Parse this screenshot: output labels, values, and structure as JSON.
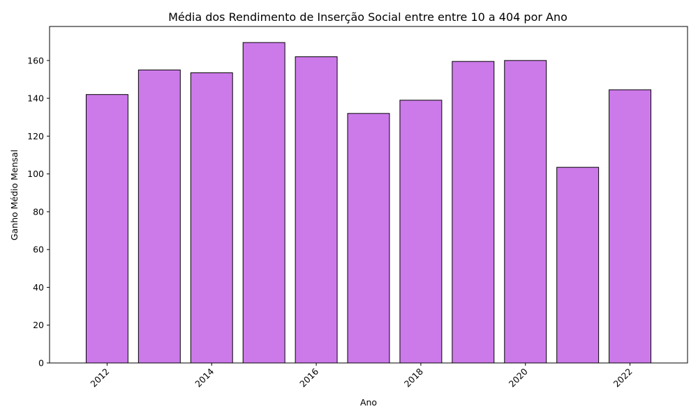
{
  "chart_data": {
    "type": "bar",
    "title": "Média dos Rendimento de Inserção Social entre entre 10 a 404 por Ano",
    "xlabel": "Ano",
    "ylabel": "Ganho Médio Mensal",
    "x": [
      2012,
      2013,
      2014,
      2015,
      2016,
      2017,
      2018,
      2019,
      2020,
      2021,
      2022
    ],
    "values": [
      142,
      155,
      153.5,
      169.5,
      162,
      132,
      139,
      159.5,
      160,
      103.5,
      144.5
    ],
    "xticks": [
      2012,
      2014,
      2016,
      2018,
      2020,
      2022
    ],
    "xlim": [
      2010.9,
      2023.1
    ],
    "yticks": [
      0,
      20,
      40,
      60,
      80,
      100,
      120,
      140,
      160
    ],
    "ylim": [
      0,
      178
    ],
    "bar_color": "#cc7aea",
    "edge_color": "#000000",
    "grid": false,
    "legend": "none"
  }
}
